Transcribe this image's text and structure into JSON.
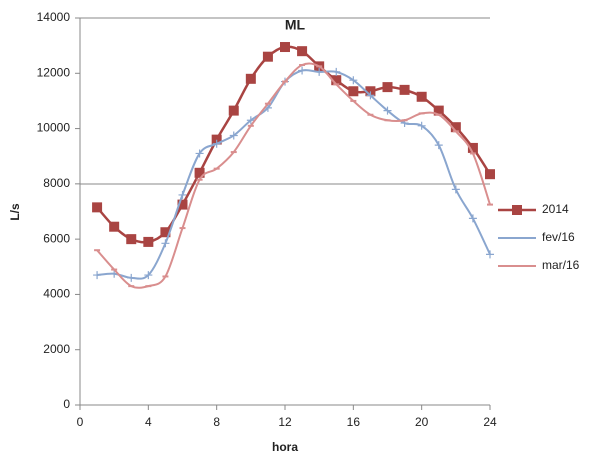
{
  "chart_data": {
    "type": "line",
    "title": "ML",
    "x_label": "hora",
    "y_label": "L/s",
    "x": [
      1,
      2,
      3,
      4,
      5,
      6,
      7,
      8,
      9,
      10,
      11,
      12,
      13,
      14,
      15,
      16,
      17,
      18,
      19,
      20,
      21,
      22,
      23,
      24
    ],
    "series": [
      {
        "name": "2014",
        "color": "#a94442",
        "marker": "square",
        "values": [
          7150,
          6450,
          6000,
          5900,
          6250,
          7250,
          8400,
          9600,
          10650,
          11800,
          12600,
          12950,
          12800,
          12250,
          11750,
          11350,
          11350,
          11500,
          11400,
          11150,
          10650,
          10050,
          9300,
          8350
        ]
      },
      {
        "name": "fev/16",
        "color": "#8aa6cf",
        "marker": "plus",
        "values": [
          4700,
          4750,
          4600,
          4700,
          5850,
          7600,
          9100,
          9450,
          9750,
          10300,
          10750,
          11700,
          12100,
          12050,
          12050,
          11750,
          11200,
          10650,
          10200,
          10100,
          9400,
          7800,
          6750,
          5450
        ]
      },
      {
        "name": "mar/16",
        "color": "#d98e8e",
        "marker": "dash",
        "values": [
          5600,
          4900,
          4300,
          4300,
          4650,
          6400,
          8150,
          8550,
          9150,
          10100,
          10900,
          11700,
          12300,
          12250,
          11600,
          11000,
          10500,
          10300,
          10300,
          10550,
          10500,
          9900,
          9100,
          7250
        ]
      }
    ],
    "xlim": [
      0,
      24
    ],
    "xticks": [
      0,
      4,
      8,
      12,
      16,
      20,
      24
    ],
    "ylim": [
      0,
      14000
    ],
    "yticks": [
      0,
      2000,
      4000,
      6000,
      8000,
      10000,
      12000,
      14000
    ]
  }
}
